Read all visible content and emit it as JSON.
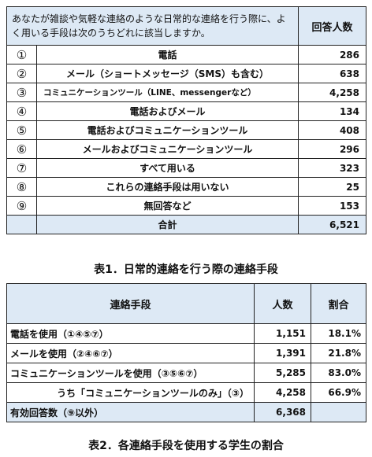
{
  "table1": {
    "question": "あなたが雑談や気軽な連絡のような日常的な連絡を行う際に、よく用いる手段は次のうちどれに該当しますか。",
    "count_header": "回答人数",
    "rows": [
      {
        "num": "①",
        "label": "電話",
        "count": "286"
      },
      {
        "num": "②",
        "label": "メール（ショートメッセージ（SMS）も含む）",
        "count": "638"
      },
      {
        "num": "③",
        "label": "コミュニケーションツール（LINE、messengerなど）",
        "count": "4,258"
      },
      {
        "num": "④",
        "label": "電話およびメール",
        "count": "134"
      },
      {
        "num": "⑤",
        "label": "電話およびコミュニケーションツール",
        "count": "408"
      },
      {
        "num": "⑥",
        "label": "メールおよびコミュニケーションツール",
        "count": "296"
      },
      {
        "num": "⑦",
        "label": "すべて用いる",
        "count": "323"
      },
      {
        "num": "⑧",
        "label": "これらの連絡手段は用いない",
        "count": "25"
      },
      {
        "num": "⑨",
        "label": "無回答など",
        "count": "153"
      }
    ],
    "total_label": "合計",
    "total_value": "6,521",
    "caption": "表1．日常的連絡を行う際の連絡手段"
  },
  "table2": {
    "headers": {
      "means": "連絡手段",
      "people": "人数",
      "ratio": "割合"
    },
    "rows": [
      {
        "label": "電話を使用（①④⑤⑦）",
        "people": "1,151",
        "ratio": "18.1%"
      },
      {
        "label": "メールを使用（②④⑥⑦）",
        "people": "1,391",
        "ratio": "21.8%"
      },
      {
        "label": "コミュニケーションツールを使用（③⑤⑥⑦）",
        "people": "5,285",
        "ratio": "83.0%"
      },
      {
        "label": "うち「コミュニケーションツールのみ」（③）",
        "people": "4,258",
        "ratio": "66.9%"
      }
    ],
    "valid_label": "有効回答数（⑨以外）",
    "valid_value": "6,368",
    "caption": "表2．各連絡手段を使用する学生の割合"
  }
}
